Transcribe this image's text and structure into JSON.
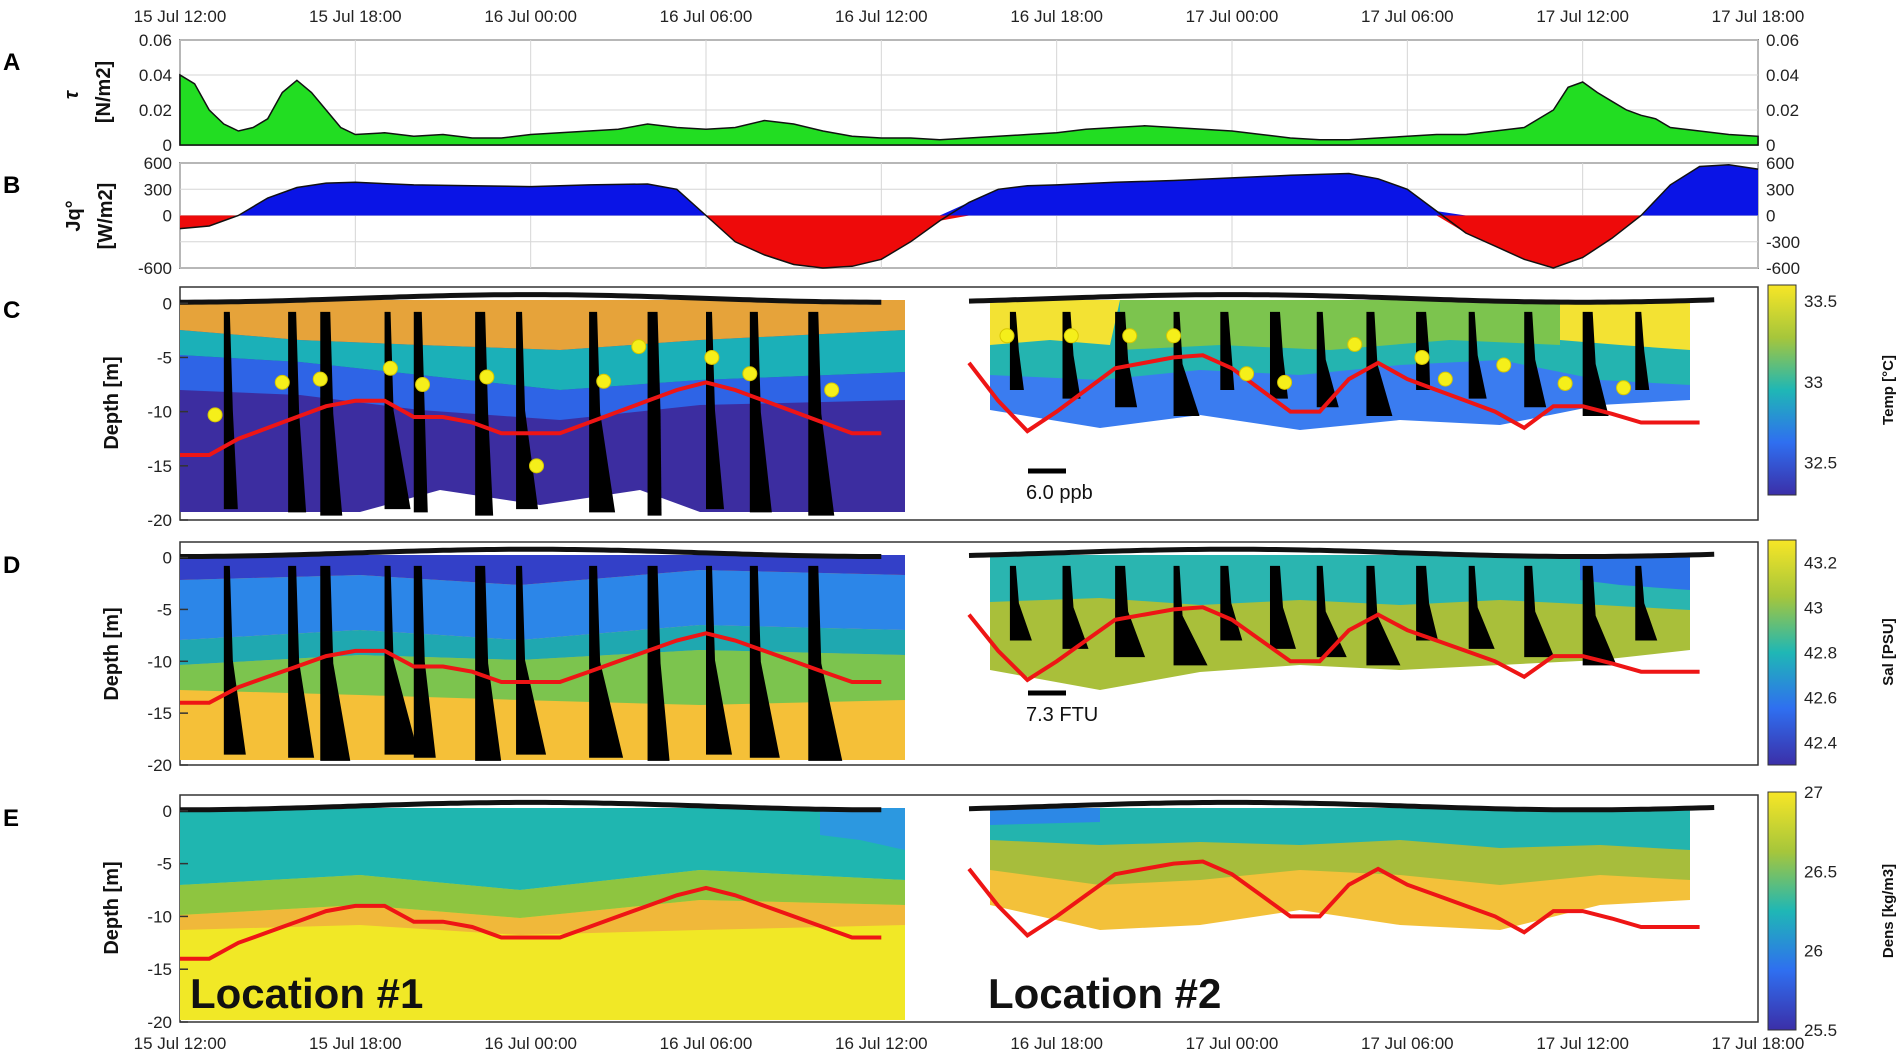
{
  "chart_data": [
    {
      "panel": "A",
      "type": "area",
      "ylabel": "τ [N/m2]",
      "ylabel_main": "τ",
      "ylabel_unit": "[N/m2]",
      "ylim": [
        0,
        0.06
      ],
      "yticks": [
        0,
        0.02,
        0.04,
        0.06
      ],
      "ytick_labels": [
        "0",
        "0.02",
        "0.04",
        "0.06"
      ],
      "fill_color": "#22dd22",
      "grid": true,
      "x_hours": [
        0,
        0.5,
        1,
        1.5,
        2,
        2.5,
        3,
        3.5,
        4,
        4.5,
        5,
        5.5,
        6,
        7,
        8,
        9,
        10,
        11,
        12,
        13,
        14,
        15,
        16,
        17,
        18,
        19,
        20,
        21,
        22,
        23,
        24,
        25,
        26,
        27,
        28,
        29,
        30,
        31,
        32,
        33,
        34,
        35,
        36,
        37,
        38,
        39,
        40,
        41,
        42,
        43,
        44,
        45,
        46,
        47,
        47.5,
        48,
        48.5,
        49,
        49.5,
        50,
        50.5,
        51,
        52,
        53,
        54
      ],
      "values": [
        0.04,
        0.035,
        0.02,
        0.012,
        0.008,
        0.01,
        0.015,
        0.03,
        0.037,
        0.03,
        0.02,
        0.01,
        0.006,
        0.007,
        0.005,
        0.006,
        0.004,
        0.004,
        0.006,
        0.007,
        0.008,
        0.009,
        0.012,
        0.01,
        0.009,
        0.01,
        0.014,
        0.012,
        0.008,
        0.005,
        0.004,
        0.004,
        0.003,
        0.004,
        0.005,
        0.006,
        0.007,
        0.009,
        0.01,
        0.011,
        0.01,
        0.009,
        0.008,
        0.006,
        0.004,
        0.003,
        0.003,
        0.004,
        0.005,
        0.006,
        0.006,
        0.008,
        0.01,
        0.02,
        0.033,
        0.036,
        0.03,
        0.025,
        0.02,
        0.017,
        0.015,
        0.01,
        0.008,
        0.006,
        0.005
      ]
    },
    {
      "panel": "B",
      "type": "area",
      "ylabel": "Jq° [W/m2]",
      "ylabel_main": "Jq°",
      "ylabel_unit": "[W/m2]",
      "ylim": [
        -600,
        600
      ],
      "yticks": [
        -600,
        -300,
        0,
        300,
        600
      ],
      "ytick_labels": [
        "-600",
        "-300",
        "0",
        "300",
        "600"
      ],
      "ytick_labels_left": [
        "-600",
        "",
        "0",
        "300",
        "600"
      ],
      "positive_color": "#0a14e6",
      "negative_color": "#ee0a0a",
      "grid": true,
      "x_hours": [
        0,
        1,
        2,
        3,
        4,
        5,
        6,
        8,
        10,
        12,
        14,
        16,
        17,
        18,
        19,
        20,
        21,
        22,
        23,
        24,
        25,
        26,
        27,
        28,
        29,
        30,
        32,
        34,
        36,
        38,
        40,
        41,
        42,
        43,
        44,
        45,
        46,
        47,
        48,
        49,
        50,
        51,
        52,
        53,
        54
      ],
      "values": [
        -150,
        -120,
        0,
        200,
        320,
        370,
        380,
        350,
        340,
        330,
        350,
        360,
        300,
        0,
        -300,
        -450,
        -560,
        -600,
        -580,
        -500,
        -300,
        -60,
        150,
        300,
        340,
        350,
        380,
        400,
        430,
        460,
        480,
        420,
        300,
        50,
        -200,
        -350,
        -500,
        -600,
        -480,
        -260,
        0,
        350,
        560,
        580,
        530
      ]
    },
    {
      "panel": "C",
      "type": "heatmap",
      "ylabel": "Depth [m]",
      "ylim": [
        -20,
        1.5
      ],
      "yticks": [
        0,
        -5,
        -10,
        -15,
        -20
      ],
      "ytick_labels": [
        "0",
        "-5",
        "-10",
        "-15",
        "-20"
      ],
      "colorbar": {
        "label": "Temp [°C]",
        "range": [
          32.3,
          33.6
        ],
        "ticks": [
          32.5,
          33,
          33.5
        ],
        "tick_labels": [
          "32.5",
          "33",
          "33.5"
        ]
      },
      "scale_bar": "6.0 ppb",
      "thermocline_depth": {
        "location1": {
          "x_hours": [
            0,
            1,
            2,
            3,
            4,
            5,
            6,
            7,
            8,
            9,
            10,
            11,
            12,
            13,
            14,
            15,
            16,
            17,
            18,
            19,
            20,
            21,
            22,
            23,
            24
          ],
          "depth": [
            -14,
            -14,
            -12.5,
            -11.5,
            -10.5,
            -9.5,
            -9,
            -9,
            -10.5,
            -10.5,
            -11,
            -12,
            -12,
            -12,
            -11,
            -10,
            -9,
            -8,
            -7.3,
            -8,
            -9,
            -10,
            -11,
            -12,
            -12
          ]
        },
        "location2": {
          "x_hours": [
            27,
            28,
            29,
            30,
            31,
            32,
            33,
            34,
            35,
            36,
            37,
            38,
            39,
            40,
            41,
            42,
            43,
            44,
            45,
            46,
            47,
            48,
            49,
            50,
            51,
            52
          ],
          "depth": [
            -5.5,
            -9,
            -11.8,
            -10,
            -8,
            -6,
            -5.5,
            -5,
            -4.8,
            -6,
            -8,
            -10,
            -10,
            -7,
            -5.5,
            -7,
            -8,
            -9,
            -10,
            -11.5,
            -9.5,
            -9.5,
            -10.2,
            -11,
            -11,
            -11
          ]
        }
      },
      "yellow_dots": {
        "x_hours": [
          1.2,
          3.5,
          4.8,
          7.2,
          8.3,
          10.5,
          12.2,
          14.5,
          15.7,
          18.2,
          19.5,
          22.3,
          28.3,
          30.5,
          32.5,
          34,
          36.5,
          37.8,
          40.2,
          42.5,
          43.3,
          45.3,
          47.4,
          49.4
        ],
        "depth": [
          -10.3,
          -7.3,
          -7,
          -6,
          -7.5,
          -6.8,
          -15,
          -7.2,
          -4,
          -5,
          -6.5,
          -8,
          -3,
          -3,
          -3,
          -3,
          -6.5,
          -7.3,
          -3.8,
          -5,
          -7,
          -5.7,
          -7.4,
          -7.8
        ]
      }
    },
    {
      "panel": "D",
      "type": "heatmap",
      "ylabel": "Depth [m]",
      "ylim": [
        -20,
        1.5
      ],
      "yticks": [
        0,
        -5,
        -10,
        -15,
        -20
      ],
      "ytick_labels": [
        "0",
        "-5",
        "-10",
        "-15",
        "-20"
      ],
      "colorbar": {
        "label": "Sal [PSU]",
        "range": [
          42.3,
          43.3
        ],
        "ticks": [
          42.4,
          42.6,
          42.8,
          43,
          43.2
        ],
        "tick_labels": [
          "42.4",
          "42.6",
          "42.8",
          "43",
          "43.2"
        ]
      },
      "scale_bar": "7.3 FTU"
    },
    {
      "panel": "E",
      "type": "heatmap",
      "ylabel": "Depth [m]",
      "ylim": [
        -20,
        1.5
      ],
      "yticks": [
        0,
        -5,
        -10,
        -15,
        -20
      ],
      "ytick_labels": [
        "0",
        "-5",
        "-10",
        "-15",
        "-20"
      ],
      "colorbar": {
        "label": "Dens [kg/m3]",
        "range": [
          25.5,
          27
        ],
        "ticks": [
          25.5,
          26,
          26.5,
          27
        ],
        "tick_labels": [
          "25.5",
          "26",
          "26.5",
          "27"
        ]
      },
      "annotations": [
        "Location #1",
        "Location #2"
      ]
    }
  ],
  "time_axis": {
    "xlim_hours": [
      0,
      54
    ],
    "top_labels": [
      "15 Jul 12:00",
      "15 Jul 18:00",
      "16 Jul 00:00",
      "16 Jul 06:00",
      "16 Jul 12:00",
      "16 Jul 18:00",
      "17 Jul 00:00",
      "17 Jul 06:00",
      "17 Jul 12:00",
      "17 Jul 18:00"
    ],
    "top_hours": [
      0,
      6,
      12,
      18,
      24,
      30,
      36,
      42,
      48,
      54
    ],
    "bottom_labels": [
      "15 Jul 12:00",
      "15 Jul 18:00",
      "16 Jul 00:00",
      "16 Jul 06:00",
      "16 Jul 12:00",
      "16 Jul 18:00",
      "17 Jul 00:00",
      "17 Jul 06:00",
      "17 Jul 12:00",
      "17 Jul 18:00"
    ],
    "bottom_hours": [
      0,
      6,
      12,
      18,
      24,
      30,
      36,
      42,
      48,
      54
    ]
  },
  "panel_letters": [
    "A",
    "B",
    "C",
    "D",
    "E"
  ],
  "tide": {
    "location1_hours": [
      0,
      24
    ],
    "location2_hours": [
      27,
      52.5
    ]
  }
}
